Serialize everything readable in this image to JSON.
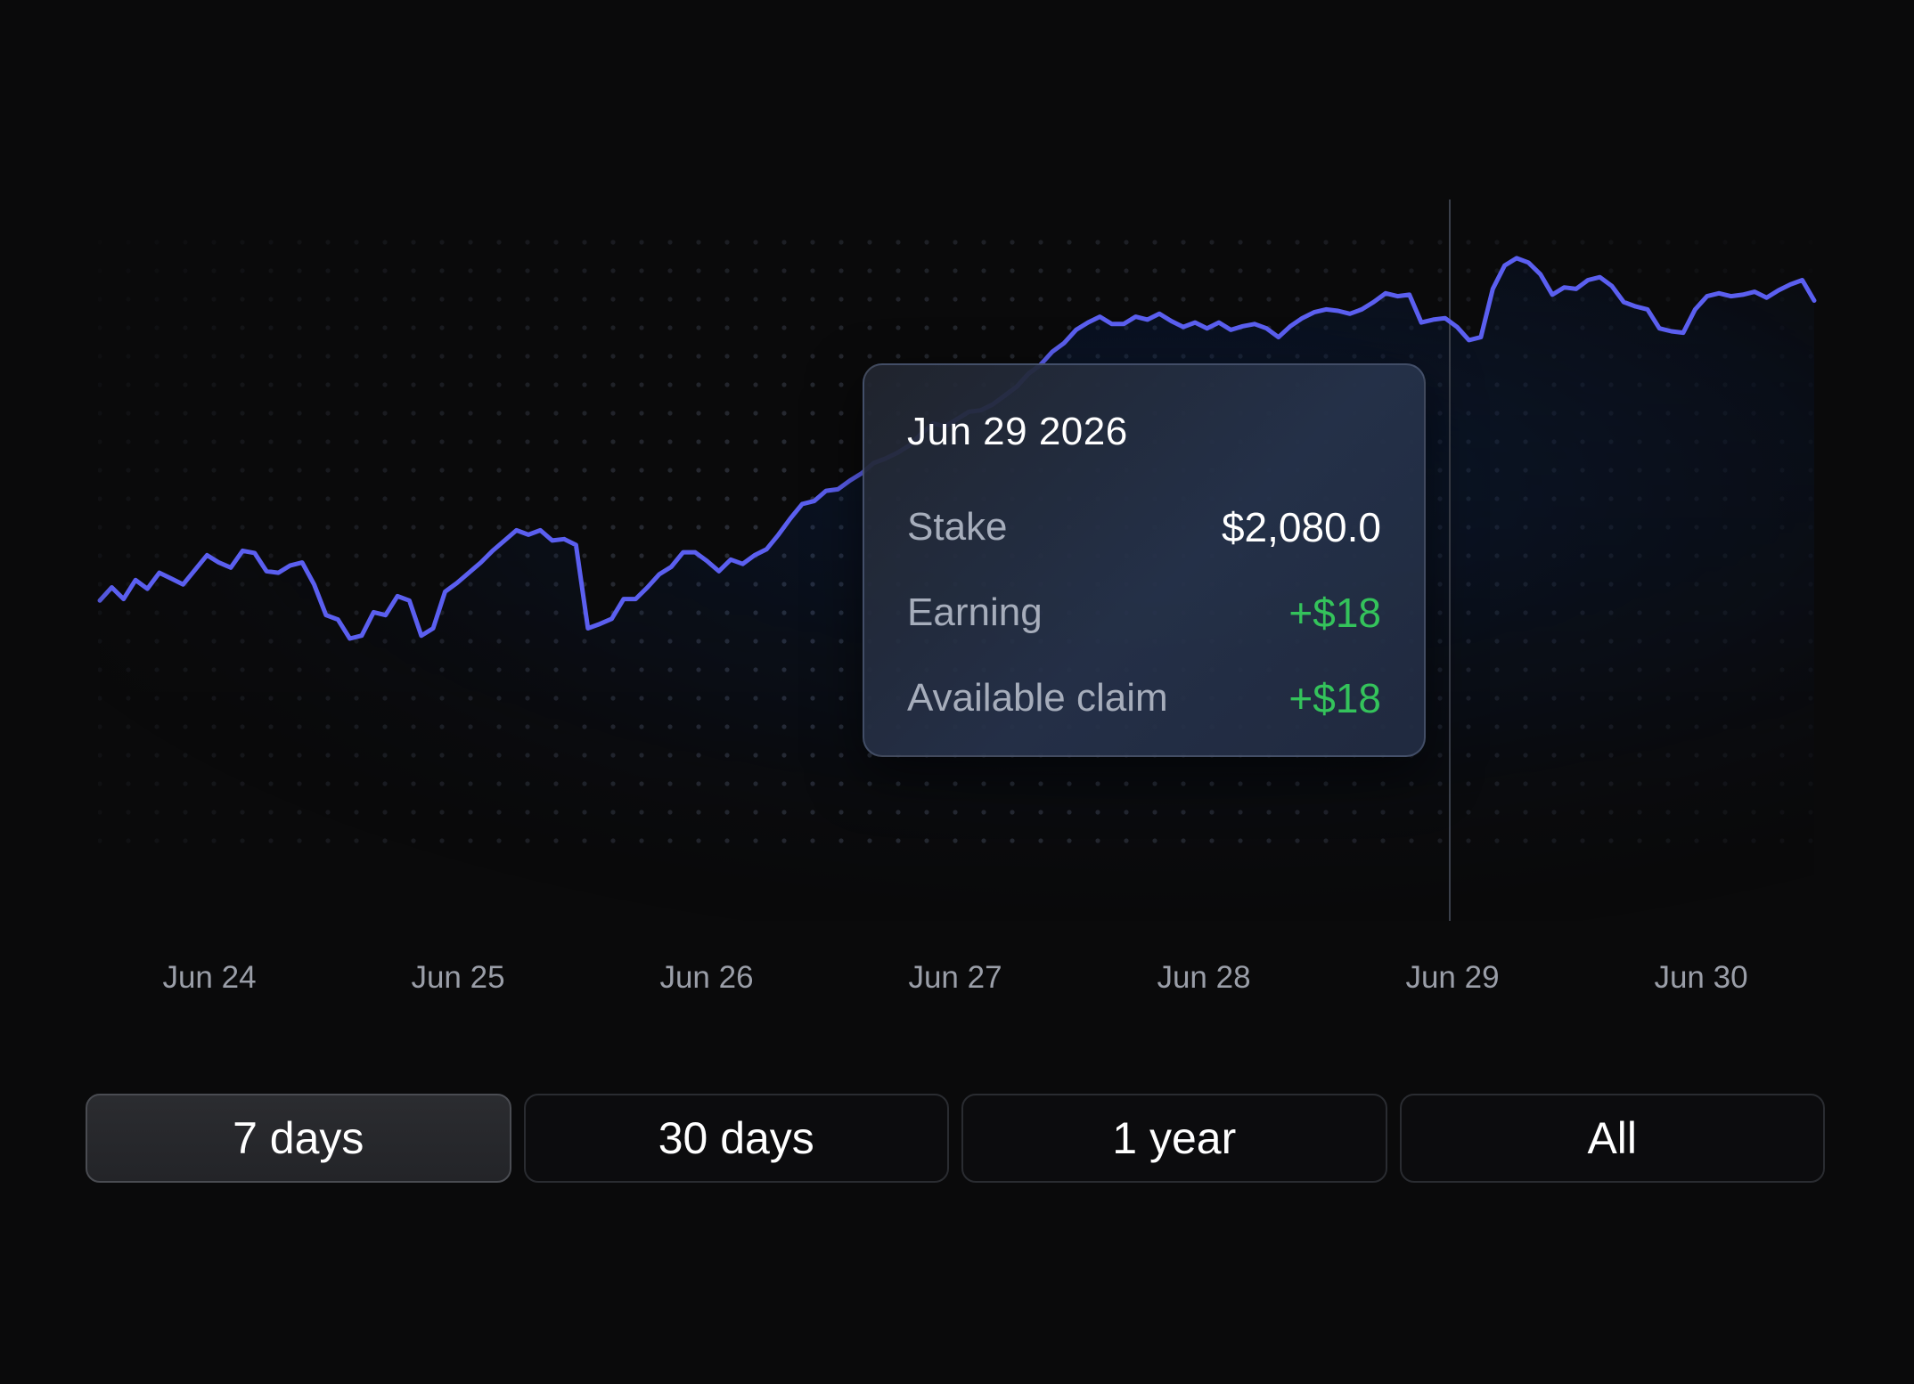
{
  "chart_data": {
    "type": "area",
    "x_labels": [
      "Jun 24",
      "Jun 25",
      "Jun 26",
      "Jun 27",
      "Jun 28",
      "Jun 29",
      "Jun 30"
    ],
    "series": [
      {
        "values": [
          1700,
          1718,
          1702,
          1728,
          1716,
          1738,
          1730,
          1722,
          1742,
          1762,
          1752,
          1745,
          1768,
          1765,
          1740,
          1738,
          1748,
          1752,
          1722,
          1680,
          1674,
          1648,
          1652,
          1684,
          1680,
          1706,
          1700,
          1652,
          1662,
          1712,
          1724,
          1738,
          1752,
          1768,
          1782,
          1796,
          1790,
          1796,
          1782,
          1784,
          1776,
          1662,
          1668,
          1675,
          1702,
          1702,
          1718,
          1736,
          1746,
          1766,
          1766,
          1754,
          1740,
          1756,
          1750,
          1762,
          1770,
          1790,
          1812,
          1832,
          1836,
          1850,
          1852,
          1864,
          1874,
          1888,
          1894,
          1902,
          1912,
          1928,
          1942,
          1938,
          1948,
          1958,
          1960,
          1968,
          1980,
          1992,
          2010,
          2022,
          2040,
          2052,
          2070,
          2080,
          2088,
          2078,
          2078,
          2088,
          2084,
          2092,
          2082,
          2074,
          2080,
          2072,
          2080,
          2070,
          2075,
          2078,
          2072,
          2060,
          2075,
          2086,
          2094,
          2098,
          2096,
          2092,
          2098,
          2108,
          2120,
          2116,
          2118,
          2080,
          2084,
          2086,
          2074,
          2056,
          2060,
          2126,
          2158,
          2168,
          2162,
          2146,
          2118,
          2128,
          2126,
          2138,
          2142,
          2130,
          2108,
          2102,
          2098,
          2072,
          2068,
          2066,
          2098,
          2116,
          2120,
          2116,
          2118,
          2122,
          2114,
          2124,
          2132,
          2138,
          2110
        ]
      }
    ],
    "hover": {
      "date_label": "Jun 29 2026"
    },
    "colors": {
      "line": "#5b5ff0",
      "area": "#0b2a5c",
      "crosshair": "#3a3f4a",
      "positive": "#34c35b",
      "background": "#0a0a0b"
    },
    "grid": "dotted"
  },
  "tooltip": {
    "date": "Jun 29 2026",
    "rows": [
      {
        "label": "Stake",
        "value": "$2,080.0",
        "tone": "neutral"
      },
      {
        "label": "Earning",
        "value": "+$18",
        "tone": "positive"
      },
      {
        "label": "Available claim",
        "value": "+$18",
        "tone": "positive"
      }
    ]
  },
  "range_selector": {
    "options": [
      "7 days",
      "30 days",
      "1 year",
      "All"
    ],
    "selected": "7 days"
  }
}
